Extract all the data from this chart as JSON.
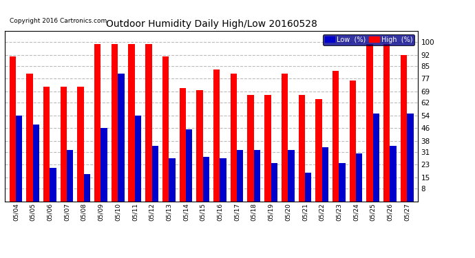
{
  "title": "Outdoor Humidity Daily High/Low 20160528",
  "copyright": "Copyright 2016 Cartronics.com",
  "dates": [
    "05/04",
    "05/05",
    "05/06",
    "05/07",
    "05/08",
    "05/09",
    "05/10",
    "05/11",
    "05/12",
    "05/13",
    "05/14",
    "05/15",
    "05/16",
    "05/17",
    "05/18",
    "05/19",
    "05/20",
    "05/21",
    "05/22",
    "05/23",
    "05/24",
    "05/25",
    "05/26",
    "05/27"
  ],
  "high": [
    91,
    80,
    72,
    72,
    72,
    99,
    99,
    99,
    99,
    91,
    71,
    70,
    83,
    80,
    67,
    67,
    80,
    67,
    64,
    82,
    76,
    99,
    99,
    92
  ],
  "low": [
    54,
    48,
    21,
    32,
    17,
    46,
    80,
    54,
    35,
    27,
    45,
    28,
    27,
    32,
    32,
    24,
    32,
    18,
    34,
    24,
    30,
    55,
    35,
    55
  ],
  "high_color": "#ff0000",
  "low_color": "#0000cc",
  "background_color": "#ffffff",
  "grid_color": "#bbbbbb",
  "yticks": [
    8,
    15,
    23,
    31,
    38,
    46,
    54,
    62,
    69,
    77,
    85,
    92,
    100
  ],
  "ylim": [
    0,
    107
  ],
  "bar_width": 0.38,
  "legend_low_label": "Low  (%)",
  "legend_high_label": "High  (%)"
}
